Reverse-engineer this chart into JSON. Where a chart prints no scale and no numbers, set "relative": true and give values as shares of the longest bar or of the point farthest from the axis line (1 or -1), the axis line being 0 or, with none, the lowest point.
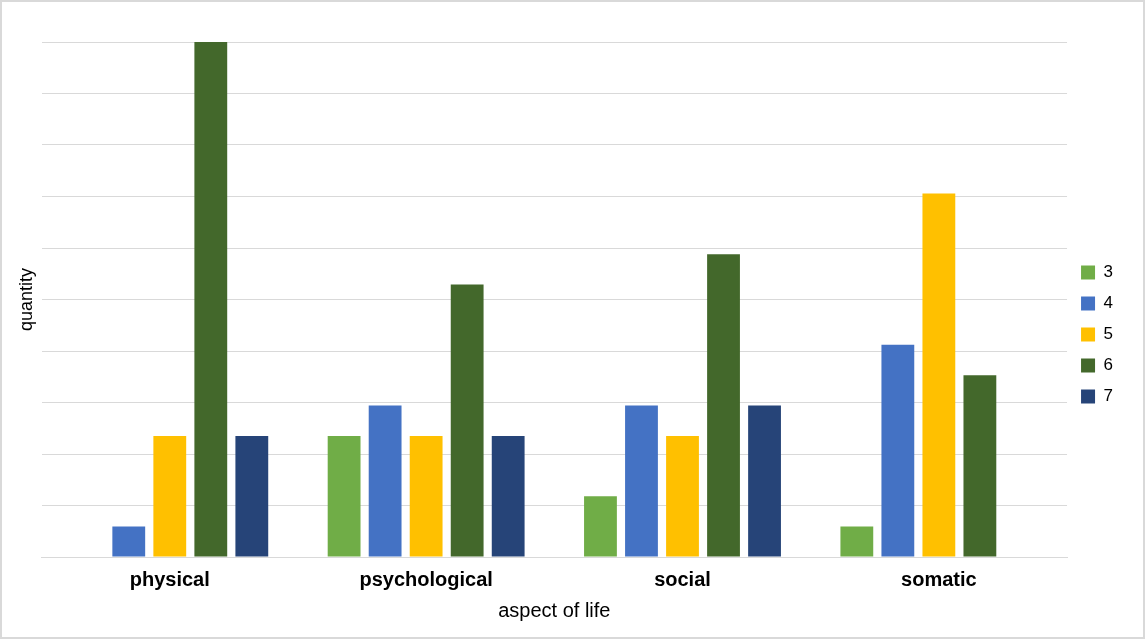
{
  "chart_data": {
    "type": "bar",
    "xlabel": "aspect of life",
    "ylabel": "quantity",
    "categories": [
      "physical",
      "psychological",
      "social",
      "somatic"
    ],
    "relative": true,
    "grid": "y",
    "legend": "right",
    "series": [
      {
        "name": "3",
        "color": "#70ad47",
        "values": [
          0,
          0.235,
          0.118,
          0.059
        ]
      },
      {
        "name": "4",
        "color": "#4472c4",
        "values": [
          0.059,
          0.294,
          0.294,
          0.412
        ]
      },
      {
        "name": "5",
        "color": "#ffc000",
        "values": [
          0.235,
          0.235,
          0.235,
          0.706
        ]
      },
      {
        "name": "6",
        "color": "#43682b",
        "values": [
          1,
          0.529,
          0.588,
          0.353
        ]
      },
      {
        "name": "7",
        "color": "#264478",
        "values": [
          0.235,
          0.235,
          0.294,
          0
        ]
      }
    ]
  }
}
